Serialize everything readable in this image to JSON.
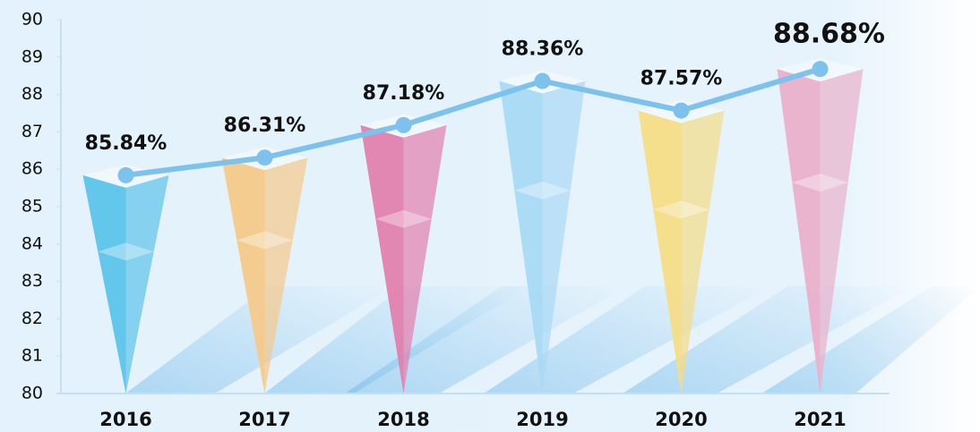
{
  "chart_data": {
    "type": "bar",
    "categories": [
      "2016",
      "2017",
      "2018",
      "2019",
      "2020",
      "2021"
    ],
    "values": [
      85.84,
      86.31,
      87.18,
      88.36,
      87.57,
      88.68
    ],
    "value_labels": [
      "85.84%",
      "86.31%",
      "87.18%",
      "88.36%",
      "87.57%",
      "88.68%"
    ],
    "colors": [
      "#5cc3ea",
      "#f5c98a",
      "#e27fae",
      "#a9d9f6",
      "#f5dc86",
      "#eab0cc"
    ],
    "line_color": "#7dc2ec",
    "ylim": [
      80,
      90
    ],
    "yticks": [
      80,
      81,
      82,
      83,
      84,
      85,
      86,
      87,
      88,
      89,
      90
    ]
  }
}
